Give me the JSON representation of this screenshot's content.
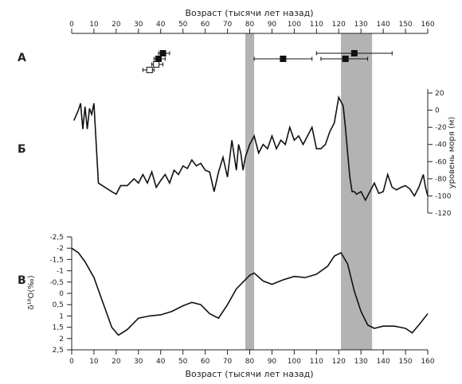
{
  "chart_data": {
    "type": "line",
    "top_axis_label": "Возраст (тысячи лет назад)",
    "bottom_axis_label": "Возраст (тысячи лет назад)",
    "x_ticks": [
      "0",
      "10",
      "20",
      "30",
      "40",
      "50",
      "60",
      "70",
      "80",
      "90",
      "100",
      "110",
      "120",
      "130",
      "140",
      "150",
      "160"
    ],
    "xlim": [
      0,
      160
    ],
    "shaded_intervals": [
      [
        78,
        82
      ],
      [
        121,
        135
      ]
    ],
    "panel_a": {
      "label": "А",
      "points": [
        {
          "x": 41,
          "xerr": [
            39,
            44
          ],
          "row": 1,
          "filled": true
        },
        {
          "x": 39,
          "xerr": [
            37,
            42
          ],
          "row": 2,
          "filled": true
        },
        {
          "x": 38,
          "xerr": [
            36,
            41
          ],
          "row": 3,
          "filled": false
        },
        {
          "x": 35,
          "xerr": [
            32,
            37
          ],
          "row": 4,
          "filled": false
        },
        {
          "x": 127,
          "xerr": [
            110,
            144
          ],
          "row": 1,
          "filled": true
        },
        {
          "x": 95,
          "xerr": [
            82,
            108
          ],
          "row": 2,
          "filled": true
        },
        {
          "x": 123,
          "xerr": [
            112,
            133
          ],
          "row": 2,
          "filled": true
        }
      ]
    },
    "panel_b": {
      "label": "Б",
      "ylabel": "уровень моря (м)",
      "ylim": [
        -120,
        20
      ],
      "y_ticks": [
        "20",
        "0",
        "-20",
        "-40",
        "-60",
        "-80",
        "-100",
        "-120"
      ],
      "x": [
        1,
        3,
        4,
        5,
        6,
        7,
        8,
        9,
        10,
        12,
        15,
        18,
        20,
        22,
        25,
        28,
        30,
        32,
        34,
        36,
        38,
        40,
        42,
        44,
        46,
        48,
        50,
        52,
        54,
        56,
        58,
        60,
        62,
        64,
        66,
        68,
        70,
        72,
        74,
        75,
        76,
        77,
        78,
        80,
        82,
        84,
        86,
        88,
        90,
        92,
        94,
        96,
        98,
        100,
        102,
        104,
        106,
        108,
        110,
        112,
        114,
        116,
        118,
        120,
        122,
        123,
        124,
        125,
        126,
        127,
        128,
        130,
        132,
        134,
        136,
        138,
        140,
        142,
        144,
        146,
        148,
        150,
        152,
        154,
        156,
        158,
        159,
        160
      ],
      "y": [
        -12,
        0,
        8,
        -22,
        4,
        -22,
        2,
        -5,
        8,
        -85,
        -90,
        -95,
        -98,
        -88,
        -88,
        -80,
        -85,
        -75,
        -85,
        -72,
        -90,
        -82,
        -75,
        -85,
        -70,
        -75,
        -65,
        -68,
        -58,
        -65,
        -62,
        -70,
        -72,
        -95,
        -72,
        -55,
        -78,
        -35,
        -70,
        -40,
        -50,
        -70,
        -55,
        -40,
        -30,
        -50,
        -40,
        -45,
        -30,
        -45,
        -35,
        -40,
        -20,
        -35,
        -30,
        -40,
        -30,
        -20,
        -45,
        -45,
        -40,
        -25,
        -15,
        15,
        5,
        -20,
        -50,
        -78,
        -95,
        -95,
        -98,
        -95,
        -105,
        -95,
        -85,
        -97,
        -95,
        -75,
        -90,
        -93,
        -90,
        -88,
        -92,
        -100,
        -90,
        -75,
        -90,
        -100
      ]
    },
    "panel_v": {
      "label": "В",
      "ylabel": "δ¹⁸O(‰)",
      "ylim": [
        -2.5,
        2.5
      ],
      "y_ticks": [
        "-2,5",
        "-2",
        "-1,5",
        "-1",
        "-0,5",
        "0",
        "0,5",
        "1",
        "1,5",
        "2",
        "2,5"
      ],
      "x": [
        0,
        3,
        6,
        10,
        14,
        18,
        21,
        25,
        30,
        35,
        40,
        45,
        50,
        54,
        58,
        62,
        66,
        70,
        74,
        78,
        80,
        82,
        86,
        90,
        95,
        100,
        105,
        110,
        115,
        118,
        121,
        124,
        127,
        130,
        133,
        136,
        140,
        145,
        150,
        153,
        156,
        160
      ],
      "y": [
        -2.0,
        -1.8,
        -1.4,
        -0.7,
        0.4,
        1.5,
        1.85,
        1.6,
        1.1,
        1.0,
        0.95,
        0.8,
        0.55,
        0.4,
        0.5,
        0.9,
        1.1,
        0.5,
        -0.2,
        -0.6,
        -0.8,
        -0.9,
        -0.55,
        -0.4,
        -0.6,
        -0.75,
        -0.7,
        -0.85,
        -1.2,
        -1.65,
        -1.8,
        -1.3,
        -0.1,
        0.8,
        1.4,
        1.55,
        1.45,
        1.45,
        1.55,
        1.75,
        1.4,
        0.9
      ]
    }
  }
}
